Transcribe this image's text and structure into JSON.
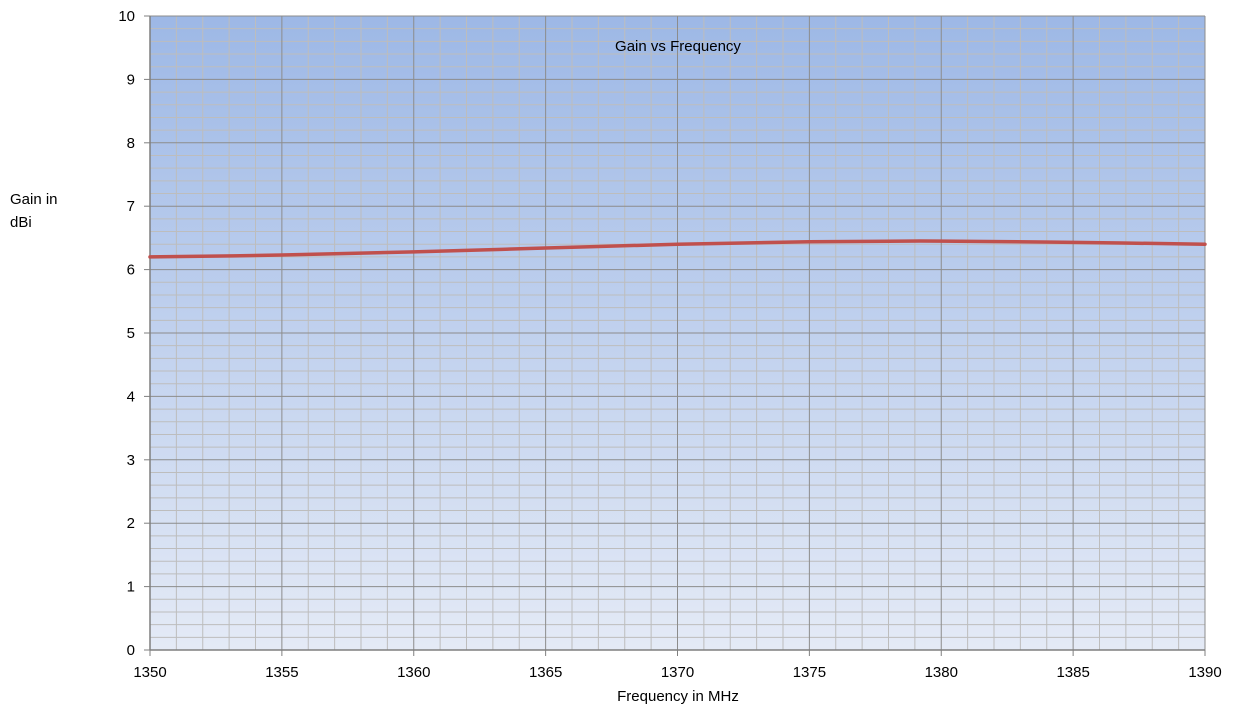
{
  "chart_data": {
    "type": "line",
    "title": "Gain vs Frequency",
    "xlabel": "Frequency in MHz",
    "ylabel_lines": [
      "Gain in",
      "dBi"
    ],
    "xlim": [
      1350,
      1390
    ],
    "ylim": [
      0,
      10
    ],
    "x_ticks": [
      "1350",
      "1355",
      "1360",
      "1365",
      "1370",
      "1375",
      "1380",
      "1385",
      "1390"
    ],
    "y_ticks": [
      "0",
      "1",
      "2",
      "3",
      "4",
      "5",
      "6",
      "7",
      "8",
      "9",
      "10"
    ],
    "grid": true,
    "legend": "none",
    "series": [
      {
        "color": "#c0504d",
        "x": [
          1350,
          1355,
          1360,
          1365,
          1370,
          1375,
          1380,
          1385,
          1390
        ],
        "y": [
          6.2,
          6.23,
          6.28,
          6.34,
          6.4,
          6.44,
          6.45,
          6.43,
          6.4
        ]
      }
    ],
    "colors": {
      "plot_top": "#9db8e6",
      "plot_bottom": "#e4eaf6",
      "grid_major": "#8c8c8c",
      "grid_minor": "#bdbdbd",
      "line": "#c0504d"
    }
  }
}
